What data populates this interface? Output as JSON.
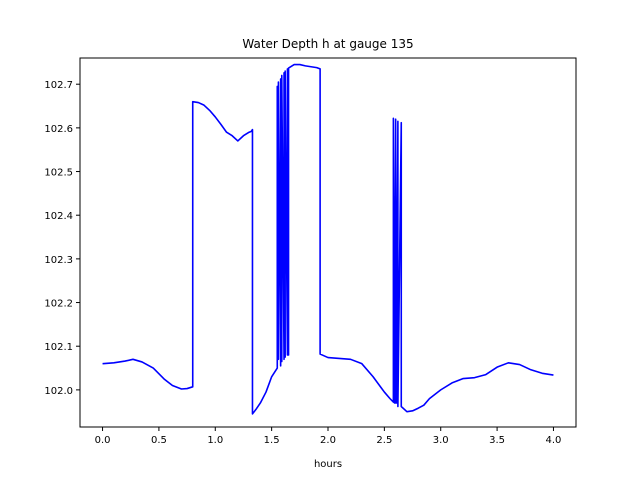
{
  "chart_data": {
    "type": "line",
    "title": "Water Depth h at gauge 135",
    "xlabel": "hours",
    "ylabel": "",
    "xlim": [
      -0.2,
      4.2
    ],
    "ylim": [
      101.915,
      102.76
    ],
    "xticks": [
      0.0,
      0.5,
      1.0,
      1.5,
      2.0,
      2.5,
      3.0,
      3.5,
      4.0
    ],
    "xtick_labels": [
      "0.0",
      "0.5",
      "1.0",
      "1.5",
      "2.0",
      "2.5",
      "3.0",
      "3.5",
      "4.0"
    ],
    "yticks": [
      102.0,
      102.1,
      102.2,
      102.3,
      102.4,
      102.5,
      102.6,
      102.7
    ],
    "ytick_labels": [
      "102.0",
      "102.1",
      "102.2",
      "102.3",
      "102.4",
      "102.5",
      "102.6",
      "102.7"
    ],
    "grid": false,
    "series": [
      {
        "color": "#0000ff",
        "x": [
          0.0,
          0.1,
          0.2,
          0.27,
          0.35,
          0.45,
          0.55,
          0.62,
          0.7,
          0.75,
          0.8,
          0.8,
          0.85,
          0.9,
          0.95,
          1.0,
          1.05,
          1.1,
          1.15,
          1.2,
          1.25,
          1.3,
          1.32,
          1.33,
          1.33,
          1.36,
          1.4,
          1.45,
          1.5,
          1.55,
          1.55,
          1.56,
          1.56,
          1.58,
          1.58,
          1.59,
          1.59,
          1.61,
          1.61,
          1.62,
          1.62,
          1.64,
          1.64,
          1.65,
          1.65,
          1.7,
          1.75,
          1.8,
          1.85,
          1.9,
          1.93,
          1.93,
          2.0,
          2.1,
          2.2,
          2.3,
          2.4,
          2.5,
          2.55,
          2.58,
          2.58,
          2.59,
          2.6,
          2.6,
          2.6,
          2.61,
          2.62,
          2.62,
          2.65,
          2.65,
          2.7,
          2.75,
          2.8,
          2.85,
          2.9,
          3.0,
          3.1,
          3.2,
          3.3,
          3.4,
          3.5,
          3.6,
          3.7,
          3.8,
          3.9,
          4.0
        ],
        "y": [
          102.06,
          102.062,
          102.066,
          102.07,
          102.064,
          102.05,
          102.024,
          102.01,
          102.002,
          102.003,
          102.007,
          102.66,
          102.658,
          102.652,
          102.64,
          102.625,
          102.608,
          102.59,
          102.582,
          102.57,
          102.582,
          102.59,
          102.592,
          102.596,
          101.945,
          101.955,
          101.97,
          101.995,
          102.03,
          102.05,
          102.695,
          102.07,
          102.705,
          102.055,
          102.712,
          102.065,
          102.72,
          102.07,
          102.726,
          102.075,
          102.73,
          102.08,
          102.735,
          102.08,
          102.737,
          102.745,
          102.745,
          102.742,
          102.74,
          102.738,
          102.735,
          102.082,
          102.074,
          102.072,
          102.07,
          102.06,
          102.03,
          101.995,
          101.98,
          101.972,
          102.622,
          101.97,
          102.618,
          101.97,
          102.62,
          101.97,
          102.615,
          101.962,
          102.612,
          101.962,
          101.95,
          101.952,
          101.958,
          101.965,
          101.98,
          102.0,
          102.016,
          102.026,
          102.028,
          102.035,
          102.052,
          102.062,
          102.058,
          102.046,
          102.038,
          102.034
        ]
      }
    ]
  }
}
